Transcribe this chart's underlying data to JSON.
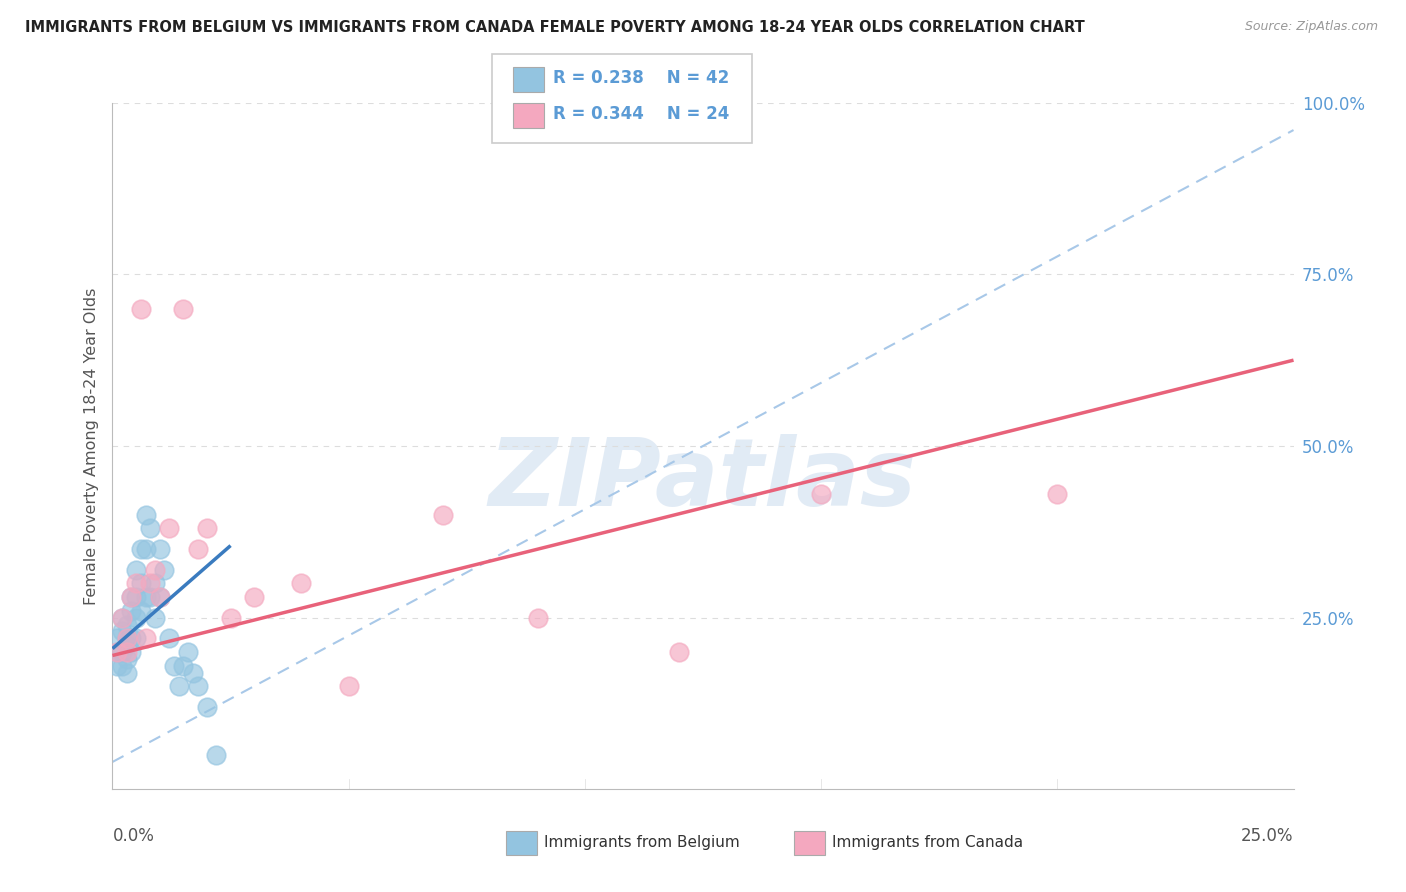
{
  "title": "IMMIGRANTS FROM BELGIUM VS IMMIGRANTS FROM CANADA FEMALE POVERTY AMONG 18-24 YEAR OLDS CORRELATION CHART",
  "source": "Source: ZipAtlas.com",
  "ylabel": "Female Poverty Among 18-24 Year Olds",
  "xlim": [
    0.0,
    0.25
  ],
  "ylim": [
    0.0,
    1.0
  ],
  "ytick_vals": [
    0.0,
    0.25,
    0.5,
    0.75,
    1.0
  ],
  "ytick_labels": [
    "",
    "25.0%",
    "50.0%",
    "75.0%",
    "100.0%"
  ],
  "legend_R_belgium": "R = 0.238",
  "legend_N_belgium": "N = 42",
  "legend_R_canada": "R = 0.344",
  "legend_N_canada": "N = 24",
  "belgium_scatter_color": "#93c4e0",
  "canada_scatter_color": "#f4a8bf",
  "belgium_line_color": "#3a7bbf",
  "canada_line_color": "#e8627a",
  "dashed_line_color": "#a8c8e8",
  "background_color": "#ffffff",
  "watermark": "ZIPatlas",
  "grid_color": "#dddddd",
  "tick_label_color": "#5b9bd5",
  "title_color": "#222222",
  "source_color": "#999999",
  "legend_text_color": "#333333",
  "bel_x": [
    0.001,
    0.001,
    0.001,
    0.002,
    0.002,
    0.002,
    0.002,
    0.003,
    0.003,
    0.003,
    0.003,
    0.003,
    0.004,
    0.004,
    0.004,
    0.004,
    0.005,
    0.005,
    0.005,
    0.005,
    0.006,
    0.006,
    0.006,
    0.007,
    0.007,
    0.007,
    0.008,
    0.008,
    0.009,
    0.009,
    0.01,
    0.01,
    0.011,
    0.012,
    0.013,
    0.014,
    0.015,
    0.016,
    0.017,
    0.018,
    0.02,
    0.022
  ],
  "bel_y": [
    0.2,
    0.22,
    0.18,
    0.25,
    0.2,
    0.18,
    0.23,
    0.22,
    0.19,
    0.24,
    0.21,
    0.17,
    0.28,
    0.22,
    0.2,
    0.26,
    0.32,
    0.25,
    0.22,
    0.28,
    0.35,
    0.3,
    0.26,
    0.4,
    0.35,
    0.28,
    0.38,
    0.28,
    0.3,
    0.25,
    0.35,
    0.28,
    0.32,
    0.22,
    0.18,
    0.15,
    0.18,
    0.2,
    0.17,
    0.15,
    0.12,
    0.05
  ],
  "can_x": [
    0.001,
    0.002,
    0.003,
    0.003,
    0.004,
    0.005,
    0.006,
    0.007,
    0.008,
    0.009,
    0.01,
    0.012,
    0.015,
    0.018,
    0.02,
    0.025,
    0.03,
    0.04,
    0.05,
    0.07,
    0.09,
    0.12,
    0.15,
    0.2
  ],
  "can_y": [
    0.2,
    0.25,
    0.2,
    0.22,
    0.28,
    0.3,
    0.7,
    0.22,
    0.3,
    0.32,
    0.28,
    0.38,
    0.7,
    0.35,
    0.38,
    0.25,
    0.28,
    0.3,
    0.15,
    0.4,
    0.25,
    0.2,
    0.43,
    0.43
  ],
  "bel_line_x0": 0.0,
  "bel_line_x1": 0.025,
  "bel_line_y0": 0.205,
  "bel_line_y1": 0.355,
  "can_line_x0": 0.0,
  "can_line_x1": 0.25,
  "can_line_y0": 0.195,
  "can_line_y1": 0.625,
  "dash_line_x0": 0.0,
  "dash_line_x1": 0.25,
  "dash_line_y0": 0.04,
  "dash_line_y1": 0.96
}
